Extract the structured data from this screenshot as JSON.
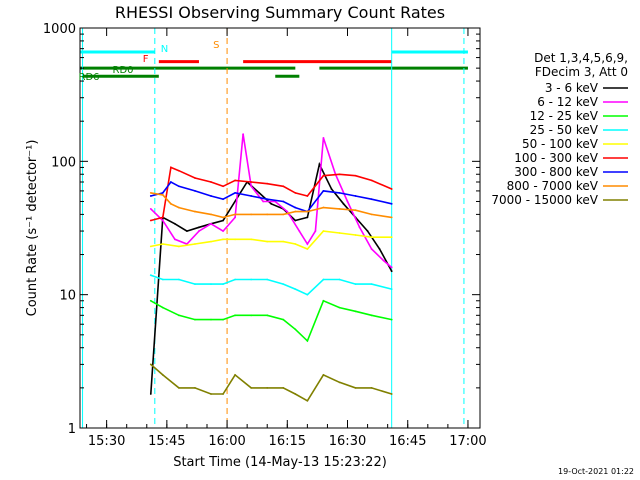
{
  "chart_data": {
    "type": "line",
    "title": "RHESSI Observing Summary Count Rates",
    "xlabel": "Start Time (14-May-13 15:23:22)",
    "ylabel": "Count Rate (s⁻¹ detector⁻¹)",
    "xlim": [
      "15:23:22",
      "17:03:00"
    ],
    "ylim": [
      1,
      1000
    ],
    "yscale": "log",
    "x_ticks": [
      "15:30",
      "15:45",
      "16:00",
      "16:15",
      "16:30",
      "16:45",
      "17:00"
    ],
    "y_ticks": [
      {
        "value": 1,
        "label": "1"
      },
      {
        "value": 10,
        "label": "10"
      },
      {
        "value": 100,
        "label": "100"
      },
      {
        "value": 1000,
        "label": "1000"
      }
    ],
    "legend_header": [
      "Det 1,3,4,5,6,9,",
      "FDecim 3, Att 0"
    ],
    "legend_position": "right",
    "footer": "19-Oct-2021 01:22",
    "series": [
      {
        "name": "3 - 6 keV",
        "color": "#000000",
        "x": [
          "15:41",
          "15:44",
          "15:47",
          "15:50",
          "15:53",
          "15:56",
          "15:59",
          "16:05",
          "16:08",
          "16:11",
          "16:14",
          "16:17",
          "16:20",
          "16:23",
          "16:26",
          "16:29",
          "16:32",
          "16:35",
          "16:38",
          "16:41"
        ],
        "values": [
          1.8,
          38,
          34,
          30,
          32,
          34,
          36,
          70,
          58,
          48,
          44,
          36,
          38,
          95,
          62,
          48,
          38,
          30,
          22,
          15
        ]
      },
      {
        "name": "6 - 12 keV",
        "color": "#ff00ff",
        "x": [
          "15:41",
          "15:44",
          "15:47",
          "15:50",
          "15:53",
          "15:56",
          "15:59",
          "16:02",
          "16:04",
          "16:06",
          "16:09",
          "16:12",
          "16:15",
          "16:18",
          "16:20",
          "16:22",
          "16:24",
          "16:27",
          "16:30",
          "16:33",
          "16:36",
          "16:39",
          "16:41"
        ],
        "values": [
          44,
          36,
          26,
          24,
          30,
          34,
          30,
          38,
          160,
          65,
          50,
          50,
          42,
          30,
          24,
          30,
          150,
          80,
          50,
          32,
          22,
          18,
          16
        ]
      },
      {
        "name": "12 - 25 keV",
        "color": "#00ff00",
        "x": [
          "15:41",
          "15:44",
          "15:48",
          "15:52",
          "15:56",
          "15:59",
          "16:02",
          "16:06",
          "16:10",
          "16:14",
          "16:17",
          "16:20",
          "16:24",
          "16:28",
          "16:32",
          "16:36",
          "16:41"
        ],
        "values": [
          9,
          8,
          7,
          6.5,
          6.5,
          6.5,
          7,
          7,
          7,
          6.5,
          5.5,
          4.5,
          9,
          8,
          7.5,
          7,
          6.5
        ]
      },
      {
        "name": "25 - 50 keV",
        "color": "#00ffff",
        "x": [
          "15:41",
          "15:44",
          "15:48",
          "15:52",
          "15:56",
          "15:59",
          "16:02",
          "16:06",
          "16:10",
          "16:14",
          "16:17",
          "16:20",
          "16:24",
          "16:28",
          "16:32",
          "16:36",
          "16:41"
        ],
        "values": [
          14,
          13,
          13,
          12,
          12,
          12,
          13,
          13,
          13,
          12,
          11,
          10,
          13,
          13,
          12,
          12,
          11
        ]
      },
      {
        "name": "50 - 100 keV",
        "color": "#ffff00",
        "x": [
          "15:41",
          "15:44",
          "15:48",
          "15:52",
          "15:56",
          "15:59",
          "16:02",
          "16:06",
          "16:10",
          "16:14",
          "16:17",
          "16:20",
          "16:24",
          "16:28",
          "16:32",
          "16:36",
          "16:41"
        ],
        "values": [
          23,
          24,
          23,
          24,
          25,
          26,
          26,
          26,
          25,
          25,
          24,
          22,
          30,
          29,
          28,
          27,
          27
        ]
      },
      {
        "name": "100 - 300 keV",
        "color": "#ff0000",
        "x": [
          "15:41",
          "15:44",
          "15:46",
          "15:48",
          "15:52",
          "15:56",
          "15:59",
          "16:02",
          "16:06",
          "16:10",
          "16:14",
          "16:17",
          "16:20",
          "16:24",
          "16:28",
          "16:32",
          "16:36",
          "16:41"
        ],
        "values": [
          36,
          38,
          90,
          85,
          75,
          70,
          65,
          72,
          70,
          68,
          65,
          58,
          55,
          78,
          80,
          78,
          72,
          62
        ]
      },
      {
        "name": "300 - 800 keV",
        "color": "#0000ff",
        "x": [
          "15:41",
          "15:44",
          "15:46",
          "15:48",
          "15:52",
          "15:56",
          "15:59",
          "16:02",
          "16:06",
          "16:10",
          "16:14",
          "16:17",
          "16:20",
          "16:24",
          "16:28",
          "16:32",
          "16:36",
          "16:41"
        ],
        "values": [
          55,
          58,
          70,
          65,
          60,
          55,
          52,
          58,
          55,
          52,
          50,
          45,
          42,
          60,
          58,
          55,
          52,
          48
        ]
      },
      {
        "name": "800 - 7000 keV",
        "color": "#ff8c00",
        "x": [
          "15:41",
          "15:44",
          "15:46",
          "15:48",
          "15:52",
          "15:56",
          "15:59",
          "16:02",
          "16:06",
          "16:10",
          "16:14",
          "16:17",
          "16:20",
          "16:24",
          "16:28",
          "16:32",
          "16:36",
          "16:41"
        ],
        "values": [
          58,
          56,
          48,
          45,
          42,
          40,
          38,
          40,
          40,
          40,
          40,
          42,
          42,
          45,
          44,
          43,
          40,
          38
        ]
      },
      {
        "name": "7000 - 15000 keV",
        "color": "#808000",
        "x": [
          "15:41",
          "15:44",
          "15:48",
          "15:52",
          "15:56",
          "15:59",
          "16:02",
          "16:06",
          "16:10",
          "16:14",
          "16:17",
          "16:20",
          "16:24",
          "16:28",
          "16:32",
          "16:36",
          "16:41"
        ],
        "values": [
          3,
          2.5,
          2,
          2,
          1.8,
          1.8,
          2.5,
          2,
          2,
          2,
          1.8,
          1.6,
          2.5,
          2.2,
          2,
          2,
          1.8
        ]
      }
    ],
    "annotations": [
      {
        "label": "N",
        "time": "15:42",
        "color": "#00ffff"
      },
      {
        "label": "F",
        "time": "15:42",
        "color": "#ff0000"
      },
      {
        "label": "S",
        "time": "16:00",
        "color": "#ff8c00"
      },
      {
        "label": "RD0",
        "time": "15:24",
        "color": "#008000"
      },
      {
        "label": "RD6",
        "time": "15:24",
        "color": "#008000"
      }
    ],
    "flag_segments": [
      {
        "color": "#00ffff",
        "level": 660,
        "segments": [
          [
            "15:23",
            "15:42"
          ],
          [
            "16:41",
            "17:00"
          ]
        ]
      },
      {
        "color": "#ff0000",
        "level": 560,
        "segments": [
          [
            "15:43",
            "15:53"
          ],
          [
            "16:04",
            "16:41"
          ]
        ]
      },
      {
        "color": "#008000",
        "level": 500,
        "segments": [
          [
            "15:23",
            "16:17"
          ],
          [
            "16:23",
            "17:00"
          ]
        ]
      },
      {
        "color": "#008000",
        "level": 435,
        "segments": [
          [
            "15:24",
            "15:43"
          ],
          [
            "16:12",
            "16:18"
          ]
        ]
      }
    ],
    "vertical_markers": [
      {
        "time": "15:42",
        "color": "#00ffff",
        "dashed": true
      },
      {
        "time": "16:00",
        "color": "#ff8c00",
        "dashed": true
      },
      {
        "time": "15:24",
        "color": "#00ffff",
        "dashed": false
      },
      {
        "time": "16:41",
        "color": "#00ffff",
        "dashed": false
      },
      {
        "time": "16:59",
        "color": "#00ffff",
        "dashed": true
      }
    ]
  }
}
